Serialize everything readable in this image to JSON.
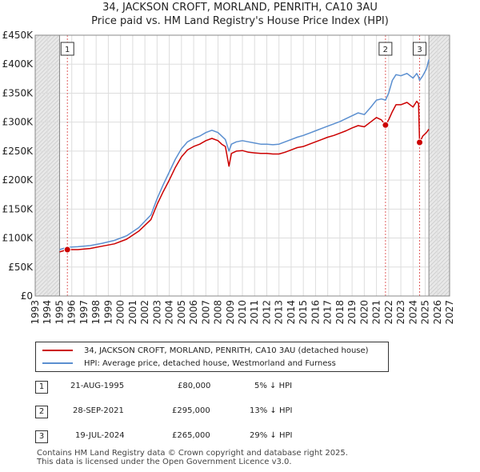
{
  "chart_data": {
    "type": "line",
    "title": "34, JACKSON CROFT, MORLAND, PENRITH, CA10 3AU",
    "subtitle": "Price paid vs. HM Land Registry's House Price Index (HPI)",
    "xlabel": "",
    "ylabel": "",
    "xlim": [
      1993,
      2027
    ],
    "ylim": [
      0,
      450000
    ],
    "x_ticks": [
      "1993",
      "1994",
      "1995",
      "1996",
      "1997",
      "1998",
      "1999",
      "2000",
      "2001",
      "2002",
      "2003",
      "2004",
      "2005",
      "2006",
      "2007",
      "2008",
      "2009",
      "2010",
      "2011",
      "2012",
      "2013",
      "2014",
      "2015",
      "2016",
      "2017",
      "2018",
      "2019",
      "2020",
      "2021",
      "2022",
      "2023",
      "2024",
      "2025",
      "2026",
      "2027"
    ],
    "y_ticks": [
      {
        "value": 0,
        "label": "£0"
      },
      {
        "value": 50000,
        "label": "£50K"
      },
      {
        "value": 100000,
        "label": "£100K"
      },
      {
        "value": 150000,
        "label": "£150K"
      },
      {
        "value": 200000,
        "label": "£200K"
      },
      {
        "value": 250000,
        "label": "£250K"
      },
      {
        "value": 300000,
        "label": "£300K"
      },
      {
        "value": 350000,
        "label": "£350K"
      },
      {
        "value": 400000,
        "label": "£400K"
      },
      {
        "value": 450000,
        "label": "£450K"
      }
    ],
    "grid": true,
    "data_range": [
      1995.0,
      2025.3
    ],
    "series": [
      {
        "name": "34, JACKSON CROFT, MORLAND, PENRITH, CA10 3AU (detached house)",
        "color": "#cc0000",
        "x": [
          1995.0,
          1995.64,
          1996.5,
          1997.5,
          1998.5,
          1999.5,
          2000.5,
          2001.5,
          2002.5,
          2003.0,
          2003.5,
          2004.0,
          2004.5,
          2005.0,
          2005.5,
          2006.0,
          2006.5,
          2007.0,
          2007.5,
          2008.0,
          2008.3,
          2008.6,
          2008.9,
          2009.1,
          2009.5,
          2010.0,
          2010.5,
          2011.0,
          2011.5,
          2012.0,
          2012.5,
          2013.0,
          2013.5,
          2014.0,
          2014.5,
          2015.0,
          2015.5,
          2016.0,
          2016.5,
          2017.0,
          2017.5,
          2018.0,
          2018.5,
          2019.0,
          2019.5,
          2020.0,
          2020.5,
          2021.0,
          2021.4,
          2021.74,
          2022.0,
          2022.3,
          2022.6,
          2023.0,
          2023.5,
          2024.0,
          2024.3,
          2024.45,
          2024.54,
          2024.8,
          2025.1,
          2025.3
        ],
        "values": [
          76000,
          80000,
          80000,
          82000,
          86000,
          90000,
          98000,
          112000,
          132000,
          158000,
          180000,
          200000,
          222000,
          240000,
          252000,
          258000,
          262000,
          268000,
          272000,
          268000,
          262000,
          258000,
          224000,
          246000,
          250000,
          251000,
          248000,
          247000,
          246000,
          246000,
          245000,
          245000,
          248000,
          252000,
          256000,
          258000,
          262000,
          266000,
          270000,
          274000,
          277000,
          281000,
          285000,
          290000,
          294000,
          292000,
          300000,
          308000,
          304000,
          295000,
          304000,
          318000,
          330000,
          330000,
          334000,
          326000,
          336000,
          332000,
          265000,
          276000,
          282000,
          288000
        ]
      },
      {
        "name": "HPI: Average price, detached house, Westmorland and Furness",
        "color": "#5b8fd0",
        "x": [
          1995.0,
          1995.64,
          1996.5,
          1997.5,
          1998.5,
          1999.5,
          2000.5,
          2001.5,
          2002.5,
          2003.0,
          2003.5,
          2004.0,
          2004.5,
          2005.0,
          2005.5,
          2006.0,
          2006.5,
          2007.0,
          2007.5,
          2008.0,
          2008.3,
          2008.6,
          2008.9,
          2009.1,
          2009.5,
          2010.0,
          2010.5,
          2011.0,
          2011.5,
          2012.0,
          2012.5,
          2013.0,
          2013.5,
          2014.0,
          2014.5,
          2015.0,
          2015.5,
          2016.0,
          2016.5,
          2017.0,
          2017.5,
          2018.0,
          2018.5,
          2019.0,
          2019.5,
          2020.0,
          2020.5,
          2021.0,
          2021.4,
          2021.74,
          2022.0,
          2022.3,
          2022.6,
          2023.0,
          2023.5,
          2024.0,
          2024.3,
          2024.45,
          2024.54,
          2024.8,
          2025.1,
          2025.3
        ],
        "values": [
          80000,
          84000,
          85000,
          87000,
          91000,
          96000,
          104000,
          118000,
          140000,
          168000,
          192000,
          214000,
          236000,
          254000,
          266000,
          272000,
          276000,
          282000,
          286000,
          282000,
          276000,
          270000,
          250000,
          262000,
          266000,
          268000,
          266000,
          264000,
          262000,
          262000,
          261000,
          262000,
          266000,
          270000,
          274000,
          277000,
          281000,
          285000,
          289000,
          293000,
          297000,
          301000,
          306000,
          311000,
          316000,
          313000,
          325000,
          338000,
          340000,
          338000,
          350000,
          372000,
          382000,
          380000,
          384000,
          376000,
          384000,
          378000,
          372000,
          380000,
          392000,
          408000
        ]
      }
    ],
    "transactions": [
      {
        "num": "1",
        "x": 1995.64,
        "value": 80000,
        "date": "21-AUG-1995",
        "price": "£80,000",
        "hpi": "5% ↓ HPI"
      },
      {
        "num": "2",
        "x": 2021.74,
        "value": 295000,
        "date": "28-SEP-2021",
        "price": "£295,000",
        "hpi": "13% ↓ HPI"
      },
      {
        "num": "3",
        "x": 2024.54,
        "value": 265000,
        "date": "19-JUL-2024",
        "price": "£265,000",
        "hpi": "29% ↓ HPI"
      }
    ]
  },
  "legend": {
    "property_label": "34, JACKSON CROFT, MORLAND, PENRITH, CA10 3AU (detached house)",
    "hpi_label": "HPI: Average price, detached house, Westmorland and Furness",
    "property_color": "#cc0000",
    "hpi_color": "#5b8fd0"
  },
  "footer": {
    "line1": "Contains HM Land Registry data © Crown copyright and database right 2025.",
    "line2": "This data is licensed under the Open Government Licence v3.0."
  }
}
